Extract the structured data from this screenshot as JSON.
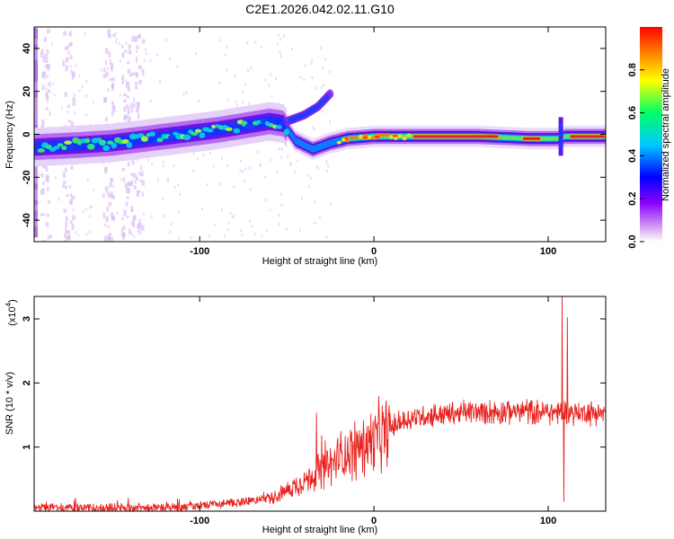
{
  "title": "C2E1.2026.042.02.11.G10",
  "chart_data": [
    {
      "type": "heatmap",
      "name": "spectrogram",
      "xlabel": "Height of straight line (km)",
      "ylabel": "Frequency (Hz)",
      "xlim": [
        -195,
        133
      ],
      "ylim": [
        -50,
        50
      ],
      "xticks": [
        -100,
        0,
        100
      ],
      "xtick_labels": [
        "-100",
        "0",
        "100"
      ],
      "yticks": [
        -40,
        -20,
        0,
        20,
        40
      ],
      "ytick_labels": [
        "-40",
        "-20",
        "0",
        "20",
        "40"
      ],
      "colorbar": {
        "label": "Normalized spectral amplitude",
        "range": [
          0,
          1
        ],
        "ticks": [
          0.0,
          0.2,
          0.4,
          0.6,
          0.8
        ],
        "tick_labels": [
          "0.0",
          "0.2",
          "0.4",
          "0.6",
          "0.8"
        ],
        "colors": [
          "#ffffff",
          "#d9a8f2",
          "#8b00ff",
          "#0000ff",
          "#00c8ff",
          "#00ff66",
          "#ffff00",
          "#ff8000",
          "#ff0000"
        ]
      },
      "ridge_center_hz": [
        {
          "x": -195,
          "y": -6
        },
        {
          "x": -170,
          "y": -5
        },
        {
          "x": -150,
          "y": -4
        },
        {
          "x": -130,
          "y": -2
        },
        {
          "x": -110,
          "y": 0
        },
        {
          "x": -90,
          "y": 2
        },
        {
          "x": -75,
          "y": 4
        },
        {
          "x": -60,
          "y": 6
        },
        {
          "x": -52,
          "y": 5
        },
        {
          "x": -45,
          "y": -3
        },
        {
          "x": -35,
          "y": -7
        },
        {
          "x": -25,
          "y": -4
        },
        {
          "x": -15,
          "y": -2
        },
        {
          "x": 0,
          "y": -1
        },
        {
          "x": 20,
          "y": -1
        },
        {
          "x": 60,
          "y": -1
        },
        {
          "x": 90,
          "y": -2
        },
        {
          "x": 105,
          "y": -2
        },
        {
          "x": 110,
          "y": -1
        },
        {
          "x": 133,
          "y": -1
        }
      ],
      "upper_branch_hz": [
        {
          "x": -50,
          "y": 6
        },
        {
          "x": -40,
          "y": 9
        },
        {
          "x": -32,
          "y": 13
        },
        {
          "x": -25,
          "y": 19
        }
      ],
      "colors": {
        "frame": "#000000"
      }
    },
    {
      "type": "line",
      "name": "snr",
      "xlabel": "Height of straight line (km)",
      "ylabel": "SNR (10 * v/v)",
      "scale_label": "(x10",
      "scale_exponent": "4",
      "scale_suffix": ")",
      "xlim": [
        -195,
        133
      ],
      "ylim": [
        0,
        3.35
      ],
      "xticks": [
        -100,
        0,
        100
      ],
      "xtick_labels": [
        "-100",
        "0",
        "100"
      ],
      "yticks": [
        1,
        2,
        3
      ],
      "ytick_labels": [
        "1",
        "2",
        "3"
      ],
      "series": [
        {
          "name": "SNR",
          "color": "#e8221e",
          "envelope": [
            {
              "x": -195,
              "y": 0.05
            },
            {
              "x": -150,
              "y": 0.05
            },
            {
              "x": -110,
              "y": 0.06
            },
            {
              "x": -90,
              "y": 0.1
            },
            {
              "x": -70,
              "y": 0.16
            },
            {
              "x": -55,
              "y": 0.25
            },
            {
              "x": -45,
              "y": 0.4
            },
            {
              "x": -35,
              "y": 0.55
            },
            {
              "x": -25,
              "y": 0.72
            },
            {
              "x": -15,
              "y": 0.92
            },
            {
              "x": -5,
              "y": 1.05
            },
            {
              "x": 5,
              "y": 1.22
            },
            {
              "x": 15,
              "y": 1.38
            },
            {
              "x": 25,
              "y": 1.47
            },
            {
              "x": 40,
              "y": 1.52
            },
            {
              "x": 60,
              "y": 1.55
            },
            {
              "x": 80,
              "y": 1.56
            },
            {
              "x": 100,
              "y": 1.55
            },
            {
              "x": 133,
              "y": 1.53
            }
          ],
          "spikes": [
            {
              "x": -33,
              "y": 1.53
            },
            {
              "x": -30,
              "y": 1.18
            },
            {
              "x": -28,
              "y": 1.1
            },
            {
              "x": -15,
              "y": 1.15
            },
            {
              "x": 5,
              "y": 1.35
            },
            {
              "x": 7,
              "y": 1.72
            },
            {
              "x": 108,
              "y": 3.35
            },
            {
              "x": 111,
              "y": 3.02
            },
            {
              "x": 109,
              "y": 0.15
            }
          ]
        }
      ]
    }
  ]
}
